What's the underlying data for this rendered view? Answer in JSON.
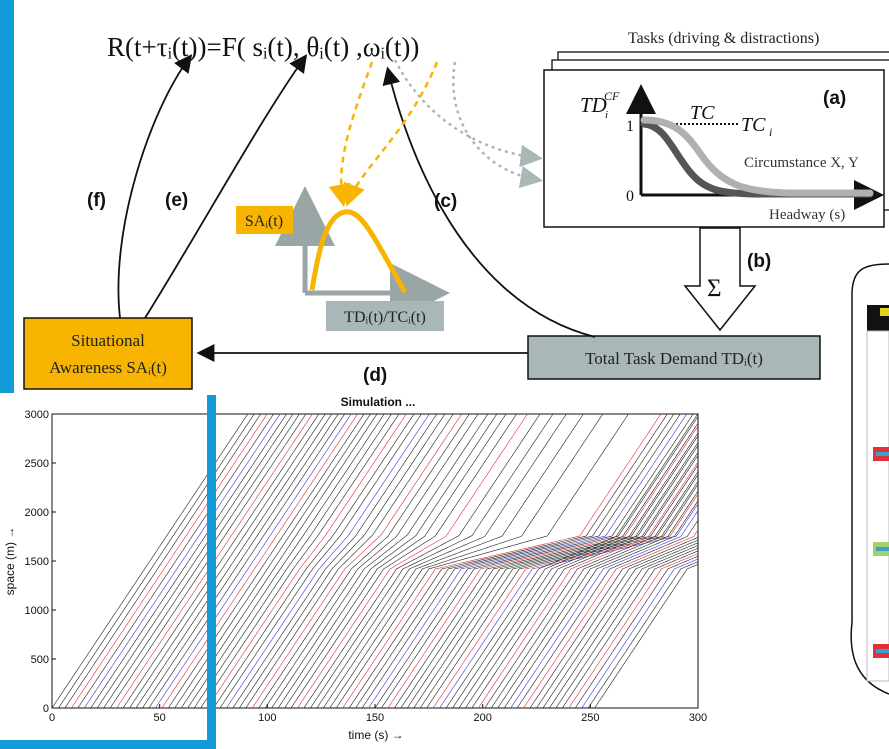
{
  "equation": "R(t+τᵢ(t))=F( sᵢ(t), θᵢ(t) ,ωᵢ(t))",
  "tasks_header": "Tasks (driving & distractions)",
  "inset": {
    "panel_letter": "(a)",
    "y_label_main": "TD",
    "y_label_sup": "CF",
    "y_label_sub": "i",
    "tick_one": "1",
    "tick_zero": "0",
    "tc_label": "TC",
    "tci_label": "TC",
    "tci_sub": "i",
    "circumstance_label": "Circumstance X, Y",
    "x_label": "Headway (s)"
  },
  "sum_symbol": "Σ",
  "arrow_labels": {
    "a": "(a)",
    "b": "(b)",
    "c": "(c)",
    "d": "(d)",
    "e": "(e)",
    "f": "(f)"
  },
  "sa_box": {
    "line1": "Situational",
    "line2": "Awareness SAᵢ(t)"
  },
  "td_box": "Total Task Demand TDᵢ(t)",
  "mini_chart": {
    "y_label": "SAᵢ(t)",
    "x_label": "TDᵢ(t)/TCᵢ(t)"
  },
  "colors": {
    "accent_blue": "#129bd8",
    "sa_yellow": "#f7b400",
    "td_gray": "#aab7b8",
    "red_line": "#e0303a",
    "blue_line": "#3a3ae0"
  },
  "chart_data": {
    "type": "line",
    "title": "Simulation ...",
    "xlabel": "time  (s) →",
    "ylabel": "space (m) →",
    "xlim": [
      0,
      300
    ],
    "ylim": [
      0,
      3000
    ],
    "x_ticks": [
      0,
      50,
      100,
      150,
      200,
      250,
      300
    ],
    "y_ticks": [
      0,
      500,
      1000,
      1500,
      2000,
      2500,
      3000
    ],
    "description_series": "vehicle trajectories",
    "series_count": 85,
    "free_speed_mps": 33,
    "congested_speed_mps": 5,
    "queue_band_m": [
      1400,
      1750
    ],
    "first_vehicle_start_s": 0,
    "vehicle_spacing_s": 3.0
  }
}
